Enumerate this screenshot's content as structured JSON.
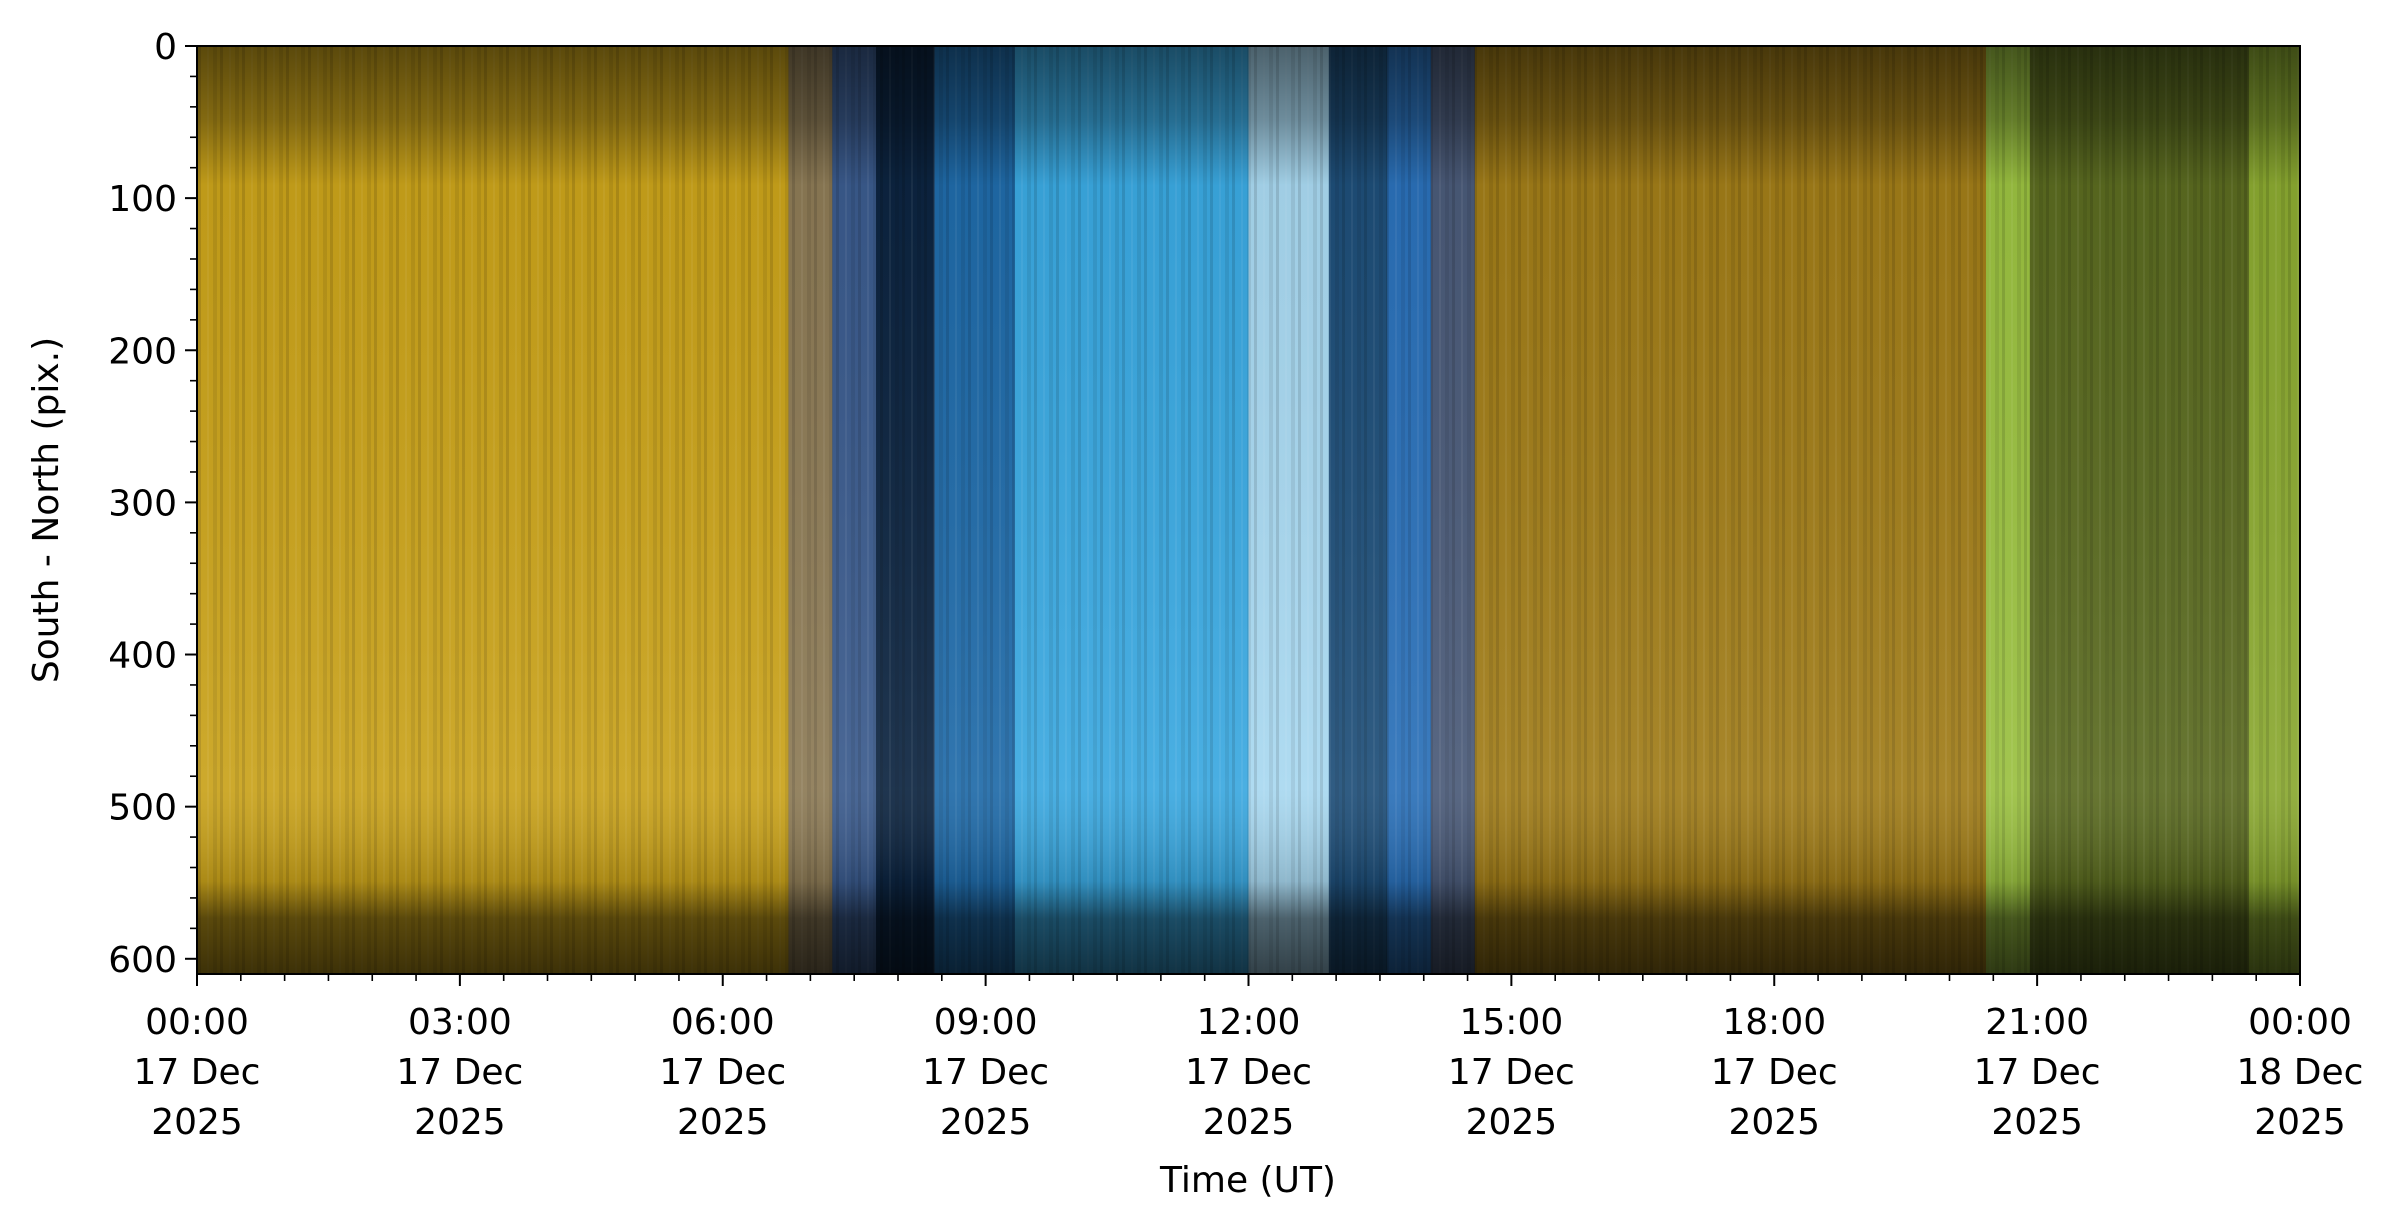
{
  "chart_data": {
    "type": "heatmap",
    "title": "",
    "xlabel": "Time (UT)",
    "ylabel": "South - North (pix.)",
    "xlim": [
      "2025-12-17T00:00",
      "2025-12-18T00:00"
    ],
    "ylim": [
      610,
      0
    ],
    "y_inverted": true,
    "x_ticks": [
      {
        "time": "2025-12-17T00:00",
        "label": [
          "00:00",
          "17 Dec",
          "2025"
        ]
      },
      {
        "time": "2025-12-17T03:00",
        "label": [
          "03:00",
          "17 Dec",
          "2025"
        ]
      },
      {
        "time": "2025-12-17T06:00",
        "label": [
          "06:00",
          "17 Dec",
          "2025"
        ]
      },
      {
        "time": "2025-12-17T09:00",
        "label": [
          "09:00",
          "17 Dec",
          "2025"
        ]
      },
      {
        "time": "2025-12-17T12:00",
        "label": [
          "12:00",
          "17 Dec",
          "2025"
        ]
      },
      {
        "time": "2025-12-17T15:00",
        "label": [
          "15:00",
          "17 Dec",
          "2025"
        ]
      },
      {
        "time": "2025-12-17T18:00",
        "label": [
          "18:00",
          "17 Dec",
          "2025"
        ]
      },
      {
        "time": "2025-12-17T21:00",
        "label": [
          "21:00",
          "17 Dec",
          "2025"
        ]
      },
      {
        "time": "2025-12-18T00:00",
        "label": [
          "00:00",
          "18 Dec",
          "2025"
        ]
      }
    ],
    "x_minor_step_minutes": 30,
    "y_ticks": [
      0,
      100,
      200,
      300,
      400,
      500,
      600
    ],
    "y_minor_step": 20,
    "grid": false,
    "legend": "none",
    "time_bands": [
      {
        "start": "00:00",
        "end": "06:45",
        "color": "#c9a21a",
        "description": "yellow auroral emission"
      },
      {
        "start": "06:45",
        "end": "07:15",
        "color": "#8c7a55"
      },
      {
        "start": "07:15",
        "end": "07:45",
        "color": "#3a5a8c"
      },
      {
        "start": "07:45",
        "end": "08:25",
        "color": "#0c2440"
      },
      {
        "start": "08:25",
        "end": "09:20",
        "color": "#1f6aa8"
      },
      {
        "start": "09:20",
        "end": "12:00",
        "color": "#3aa8e0",
        "description": "blue sky background"
      },
      {
        "start": "12:00",
        "end": "12:55",
        "color": "#a8d8f0"
      },
      {
        "start": "12:55",
        "end": "13:35",
        "color": "#1e4e78"
      },
      {
        "start": "13:35",
        "end": "14:05",
        "color": "#2a70b8"
      },
      {
        "start": "14:05",
        "end": "14:35",
        "color": "#4a5a78"
      },
      {
        "start": "14:35",
        "end": "20:25",
        "color": "#a07c18",
        "description": "orange-yellow auroral emission"
      },
      {
        "start": "20:25",
        "end": "20:55",
        "color": "#9ac040",
        "description": "green emission"
      },
      {
        "start": "20:55",
        "end": "23:25",
        "color": "#5a6a20"
      },
      {
        "start": "23:25",
        "end": "24:00",
        "color": "#8aa830"
      }
    ]
  }
}
